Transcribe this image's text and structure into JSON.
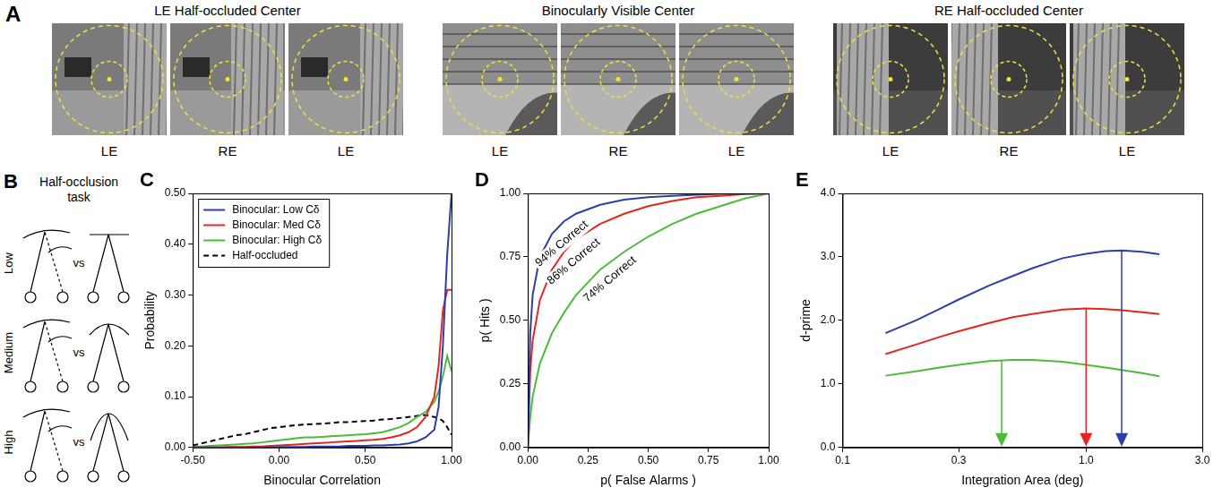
{
  "panels": {
    "A": {
      "letter": "A",
      "groups": [
        {
          "title": "LE Half-occluded Center",
          "eyes": [
            "LE",
            "RE",
            "LE"
          ]
        },
        {
          "title": "Binocularly Visible Center",
          "eyes": [
            "LE",
            "RE",
            "LE"
          ]
        },
        {
          "title": "RE Half-occluded Center",
          "eyes": [
            "LE",
            "RE",
            "LE"
          ]
        }
      ]
    },
    "B": {
      "letter": "B",
      "title": "Half-occlusion task",
      "rows": [
        "Low",
        "Medium",
        "High"
      ],
      "separator": "vs"
    }
  },
  "chart_data": [
    {
      "panel": "C",
      "type": "line",
      "x_label": "Binocular Correlation",
      "y_label": "Probability",
      "x": [
        -0.5,
        -0.45,
        -0.4,
        -0.35,
        -0.3,
        -0.25,
        -0.2,
        -0.15,
        -0.1,
        -0.05,
        0,
        0.05,
        0.1,
        0.15,
        0.2,
        0.25,
        0.3,
        0.35,
        0.4,
        0.45,
        0.5,
        0.55,
        0.6,
        0.65,
        0.7,
        0.75,
        0.8,
        0.85,
        0.9,
        0.925,
        0.95,
        0.975,
        1.0
      ],
      "series": [
        {
          "name": "Binocular: Low Cδ",
          "color": "#2b3fa8",
          "line_style": "solid",
          "values": [
            0,
            0,
            0,
            0,
            0,
            0,
            0,
            0,
            0,
            0,
            0.001,
            0.001,
            0.001,
            0.001,
            0.002,
            0.002,
            0.002,
            0.002,
            0.003,
            0.003,
            0.003,
            0.004,
            0.004,
            0.005,
            0.006,
            0.008,
            0.012,
            0.02,
            0.035,
            0.08,
            0.2,
            0.38,
            0.5
          ]
        },
        {
          "name": "Binocular: Med Cδ",
          "color": "#e3261f",
          "line_style": "solid",
          "values": [
            0,
            0,
            0,
            0,
            0.001,
            0.001,
            0.001,
            0.002,
            0.002,
            0.003,
            0.004,
            0.005,
            0.006,
            0.007,
            0.008,
            0.009,
            0.01,
            0.011,
            0.012,
            0.013,
            0.014,
            0.015,
            0.017,
            0.02,
            0.024,
            0.03,
            0.04,
            0.06,
            0.1,
            0.16,
            0.27,
            0.31,
            0.31
          ]
        },
        {
          "name": "Binocular: High Cδ",
          "color": "#4cbb3a",
          "line_style": "solid",
          "values": [
            0.002,
            0.002,
            0.003,
            0.004,
            0.005,
            0.006,
            0.007,
            0.008,
            0.01,
            0.012,
            0.014,
            0.016,
            0.018,
            0.02,
            0.02,
            0.021,
            0.022,
            0.023,
            0.024,
            0.025,
            0.026,
            0.028,
            0.03,
            0.035,
            0.04,
            0.048,
            0.06,
            0.07,
            0.09,
            0.11,
            0.14,
            0.18,
            0.15
          ]
        },
        {
          "name": "Half-occluded",
          "color": "#000000",
          "line_style": "dashed",
          "values": [
            0.004,
            0.008,
            0.012,
            0.016,
            0.02,
            0.024,
            0.026,
            0.03,
            0.034,
            0.038,
            0.04,
            0.042,
            0.044,
            0.045,
            0.046,
            0.047,
            0.048,
            0.05,
            0.05,
            0.051,
            0.052,
            0.053,
            0.055,
            0.056,
            0.058,
            0.06,
            0.062,
            0.064,
            0.06,
            0.058,
            0.052,
            0.04,
            0.025
          ]
        }
      ],
      "xlim": [
        -0.5,
        1.0
      ],
      "xticks": [
        {
          "value": -0.5,
          "label": "-0.50"
        },
        {
          "value": 0,
          "label": "0.00"
        },
        {
          "value": 0.5,
          "label": "0.50"
        },
        {
          "value": 1.0,
          "label": "1.00"
        }
      ],
      "ylim": [
        0,
        0.5
      ],
      "yticks": [
        {
          "value": 0,
          "label": "0.00"
        },
        {
          "value": 0.1,
          "label": "0.10"
        },
        {
          "value": 0.2,
          "label": "0.20"
        },
        {
          "value": 0.3,
          "label": "0.30"
        },
        {
          "value": 0.4,
          "label": "0.40"
        },
        {
          "value": 0.5,
          "label": "0.50"
        }
      ],
      "grid": false,
      "legend": "upper left"
    },
    {
      "panel": "D",
      "type": "line",
      "x_label": "p( False Alarms )",
      "y_label": "p( Hits )",
      "x": [
        0,
        0.01,
        0.02,
        0.05,
        0.1,
        0.15,
        0.2,
        0.3,
        0.4,
        0.5,
        0.6,
        0.7,
        0.8,
        0.9,
        1.0
      ],
      "series": [
        {
          "color": "#2b3fa8",
          "label": "94% Correct",
          "values": [
            0,
            0.45,
            0.6,
            0.75,
            0.84,
            0.89,
            0.92,
            0.955,
            0.975,
            0.985,
            0.99,
            0.995,
            0.998,
            0.999,
            1.0
          ]
        },
        {
          "color": "#e3261f",
          "label": "86% Correct",
          "values": [
            0,
            0.3,
            0.42,
            0.58,
            0.7,
            0.77,
            0.82,
            0.88,
            0.92,
            0.95,
            0.97,
            0.985,
            0.99,
            0.997,
            1.0
          ]
        },
        {
          "color": "#4cbb3a",
          "label": "74% Correct",
          "values": [
            0,
            0.12,
            0.2,
            0.33,
            0.45,
            0.53,
            0.6,
            0.7,
            0.77,
            0.83,
            0.88,
            0.92,
            0.95,
            0.98,
            1.0
          ]
        }
      ],
      "xlim": [
        0,
        1.0
      ],
      "xticks": [
        {
          "value": 0,
          "label": "0.00"
        },
        {
          "value": 0.25,
          "label": "0.25"
        },
        {
          "value": 0.5,
          "label": "0.50"
        },
        {
          "value": 0.75,
          "label": "0.75"
        },
        {
          "value": 1.0,
          "label": "1.00"
        }
      ],
      "ylim": [
        0,
        1.0
      ],
      "yticks": [
        {
          "value": 0,
          "label": "0.00"
        },
        {
          "value": 0.25,
          "label": "0.25"
        },
        {
          "value": 0.5,
          "label": "0.50"
        },
        {
          "value": 0.75,
          "label": "0.75"
        },
        {
          "value": 1.0,
          "label": "1.00"
        }
      ],
      "grid": false
    },
    {
      "panel": "E",
      "type": "line",
      "x_label": "Integration Area (deg)",
      "y_label": "d-prime",
      "log": "x",
      "x": [
        0.15,
        0.2,
        0.25,
        0.3,
        0.4,
        0.5,
        0.6,
        0.8,
        1.0,
        1.2,
        1.4,
        1.7,
        2.0
      ],
      "series": [
        {
          "color": "#2b3fa8",
          "peak": 1.4,
          "values": [
            1.8,
            2.0,
            2.18,
            2.33,
            2.55,
            2.7,
            2.82,
            2.98,
            3.05,
            3.09,
            3.1,
            3.08,
            3.04
          ]
        },
        {
          "color": "#e3261f",
          "peak": 1.0,
          "values": [
            1.47,
            1.62,
            1.74,
            1.83,
            1.96,
            2.05,
            2.1,
            2.17,
            2.19,
            2.18,
            2.16,
            2.13,
            2.1
          ]
        },
        {
          "color": "#4cbb3a",
          "peak": 0.45,
          "values": [
            1.13,
            1.2,
            1.26,
            1.3,
            1.36,
            1.38,
            1.38,
            1.35,
            1.3,
            1.26,
            1.22,
            1.17,
            1.12
          ]
        }
      ],
      "xlim": [
        0.1,
        3.0
      ],
      "xticks": [
        0.1,
        0.3,
        {
          "value": 1.0,
          "label": "1.0"
        },
        {
          "value": 3.0,
          "label": "3.0"
        }
      ],
      "ylim": [
        0,
        4.0
      ],
      "yticks": [
        {
          "value": 0,
          "label": "0.0"
        },
        {
          "value": 1,
          "label": "1.0"
        },
        {
          "value": 2,
          "label": "2.0"
        },
        {
          "value": 3,
          "label": "3.0"
        },
        {
          "value": 4,
          "label": "4.0"
        }
      ],
      "grid": false
    }
  ]
}
